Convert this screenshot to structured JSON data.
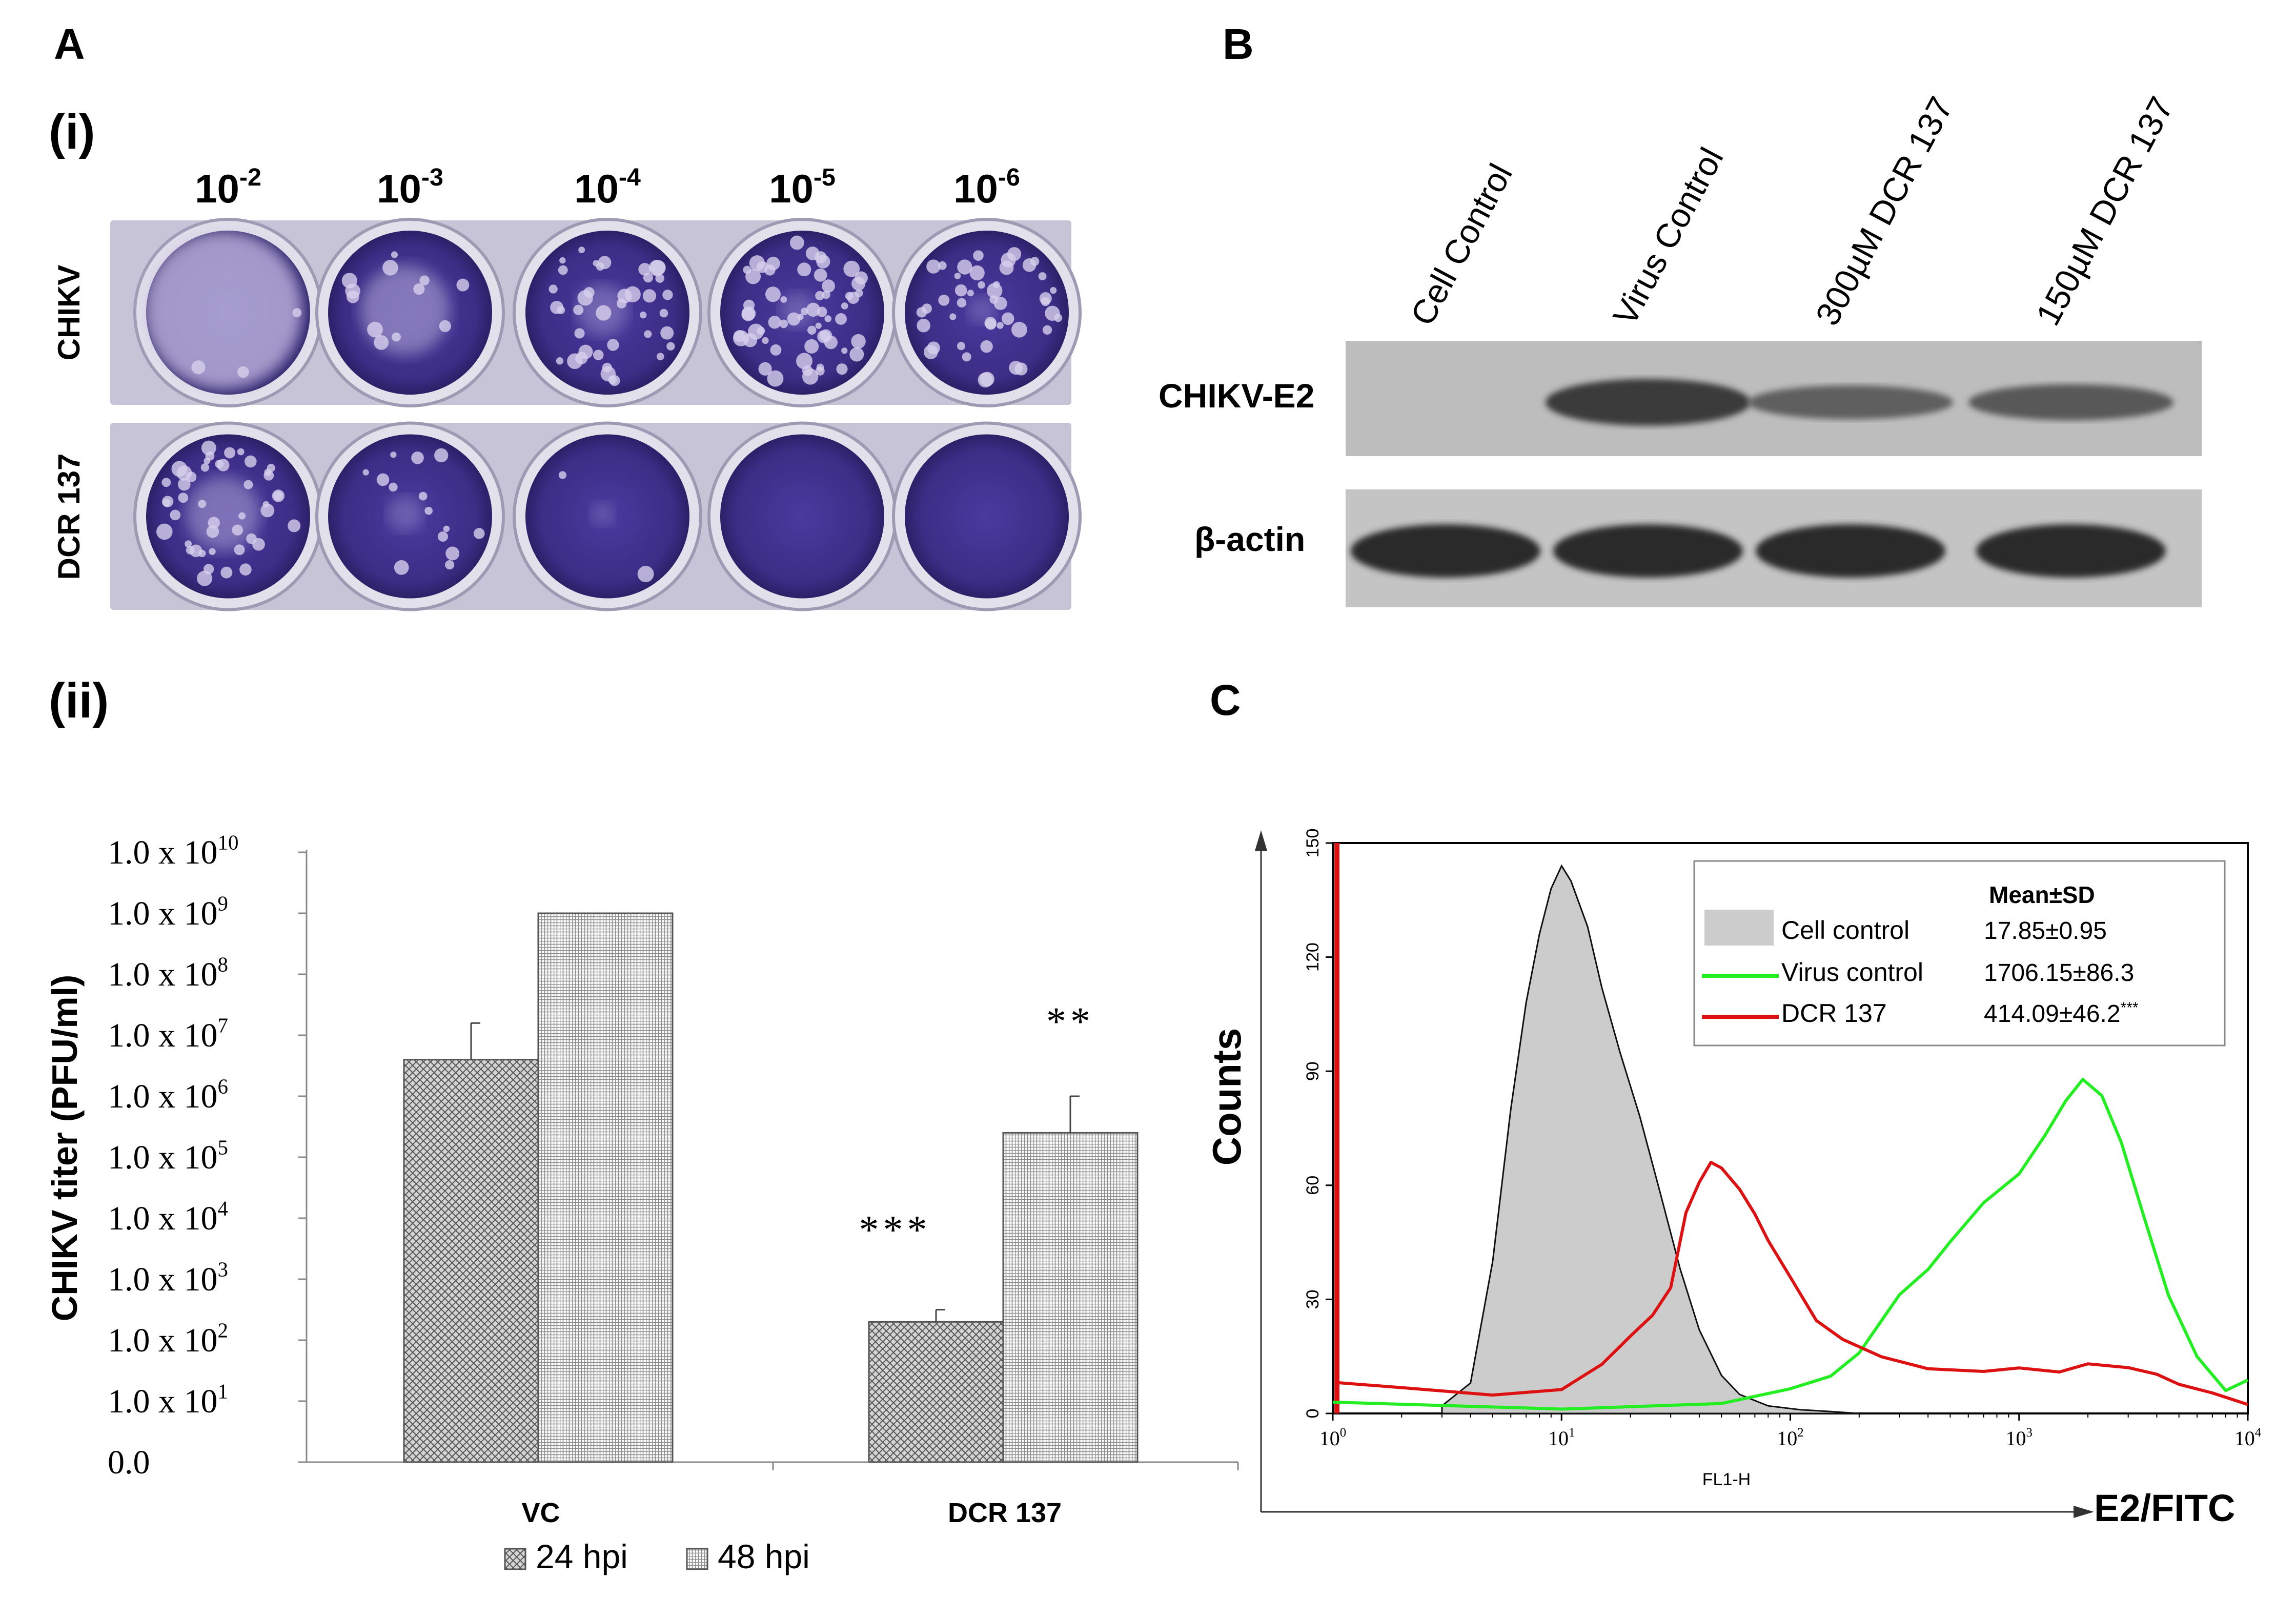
{
  "panels": {
    "a": "A",
    "a_i": "(i)",
    "a_ii": "(ii)",
    "b": "B",
    "c": "C"
  },
  "plaque": {
    "dilutions": [
      {
        "base": "10",
        "exp": "-2"
      },
      {
        "base": "10",
        "exp": "-3"
      },
      {
        "base": "10",
        "exp": "-4"
      },
      {
        "base": "10",
        "exp": "-5"
      },
      {
        "base": "10",
        "exp": "-6"
      }
    ],
    "rows": [
      "CHIKV",
      "DCR 137"
    ]
  },
  "blot": {
    "lanes": [
      "Cell Control",
      "Virus Control",
      "300µM DCR 137",
      "150µM DCR 137"
    ],
    "row_labels": [
      "CHIKV-E2",
      "β-actin"
    ],
    "e2_intensity": [
      0.0,
      0.85,
      0.55,
      0.6
    ],
    "actin_intensity": [
      0.9,
      0.9,
      0.9,
      0.9
    ]
  },
  "chart_data": [
    {
      "type": "bar",
      "ylabel": "CHIKV titer (PFU/ml)",
      "ytick_labels": [
        {
          "pre": "0.0",
          "exp": ""
        },
        {
          "pre": "1.0 x 10",
          "exp": "1"
        },
        {
          "pre": "1.0 x 10",
          "exp": "2"
        },
        {
          "pre": "1.0 x 10",
          "exp": "3"
        },
        {
          "pre": "1.0 x 10",
          "exp": "4"
        },
        {
          "pre": "1.0  x 10",
          "exp": "5"
        },
        {
          "pre": "1.0 x 10",
          "exp": "6"
        },
        {
          "pre": "1.0 x 10",
          "exp": "7"
        },
        {
          "pre": "1.0 x 10",
          "exp": "8"
        },
        {
          "pre": "1.0 x 10",
          "exp": "9"
        },
        {
          "pre": "1.0 x 10",
          "exp": "10"
        }
      ],
      "ylim_log10": [
        0,
        10
      ],
      "categories": [
        "VC",
        "DCR 137"
      ],
      "series": [
        {
          "name": "24 hpi",
          "log10_values": [
            6.6,
            2.3
          ],
          "log10_error": [
            0.6,
            0.2
          ]
        },
        {
          "name": "48 hpi",
          "log10_values": [
            9.0,
            5.4
          ],
          "log10_error": [
            0.0,
            0.6
          ]
        }
      ],
      "significance": [
        {
          "category": 1,
          "series": 0,
          "text": "***"
        },
        {
          "category": 1,
          "series": 1,
          "text": "**"
        }
      ],
      "legend_position": "bottom-center"
    },
    {
      "type": "line",
      "title": "",
      "xlabel": "E2/FITC",
      "xlabel_small": "FL1-H",
      "ylabel": "Counts",
      "xscale": "log",
      "xlim": [
        1,
        10000
      ],
      "ylim": [
        0,
        150
      ],
      "yticks": [
        "0",
        "30",
        "60",
        "90",
        "120",
        "150"
      ],
      "xtick_labels": [
        {
          "base": "10",
          "exp": "0"
        },
        {
          "base": "10",
          "exp": "1"
        },
        {
          "base": "10",
          "exp": "2"
        },
        {
          "base": "10",
          "exp": "3"
        },
        {
          "base": "10",
          "exp": "4"
        }
      ],
      "legend": {
        "header": "Mean±SD",
        "entries": [
          {
            "name": "Cell control",
            "value": "17.85±0.95",
            "sig": "",
            "color": "#c8c8c8"
          },
          {
            "name": "Virus control",
            "value": "1706.15±86.3",
            "sig": "",
            "color": "#22ee22"
          },
          {
            "name": "DCR 137",
            "value": "414.09±46.2",
            "sig": "***",
            "color": "#dd1111"
          }
        ]
      },
      "series": [
        {
          "name": "Cell control",
          "color": "#c8c8c8",
          "x": [
            3,
            4,
            5,
            6,
            7,
            8,
            9,
            10,
            11,
            13,
            15,
            18,
            22,
            27,
            33,
            40,
            50,
            60,
            80,
            110,
            150,
            200
          ],
          "y": [
            2,
            8,
            40,
            80,
            108,
            126,
            138,
            144,
            140,
            128,
            112,
            95,
            78,
            58,
            38,
            22,
            10,
            5,
            2,
            1,
            0.5,
            0
          ]
        },
        {
          "name": "Virus control",
          "color": "#22ee22",
          "x": [
            1,
            10,
            50,
            100,
            150,
            200,
            300,
            400,
            500,
            700,
            1000,
            1300,
            1600,
            1900,
            2300,
            2800,
            3500,
            4500,
            6000,
            8000,
            10000
          ],
          "y": [
            2,
            2,
            3,
            6,
            10,
            16,
            30,
            38,
            45,
            55,
            64,
            74,
            83,
            87,
            84,
            70,
            52,
            32,
            15,
            6,
            10
          ]
        },
        {
          "name": "DCR 137",
          "color": "#dd1111",
          "x": [
            1.05,
            2,
            5,
            10,
            15,
            20,
            25,
            30,
            35,
            40,
            45,
            50,
            60,
            70,
            80,
            100,
            130,
            170,
            250,
            400,
            700,
            1000,
            1500,
            2000,
            3000,
            4000,
            5000,
            7000,
            10000
          ],
          "y": [
            8,
            6,
            5,
            7,
            14,
            20,
            26,
            34,
            52,
            62,
            65,
            64,
            58,
            52,
            45,
            35,
            25,
            19,
            15,
            13,
            12,
            13,
            12,
            13,
            13,
            11,
            8,
            5,
            3
          ]
        }
      ]
    }
  ]
}
